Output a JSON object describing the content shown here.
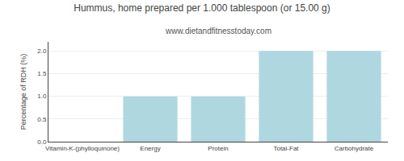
{
  "chart_data": {
    "type": "bar",
    "title": "Hummus, home prepared per 1.000 tablespoon (or 15.00 g)",
    "subtitle": "www.dietandfitnesstoday.com",
    "categories": [
      "Vitamin-K-(phylloquinone)",
      "Energy",
      "Protein",
      "Total-Fat",
      "Carbohydrate"
    ],
    "values": [
      0.0,
      1.0,
      1.0,
      2.0,
      2.0
    ],
    "color": "#afd7e0",
    "ylabel": "Percentage of RDH (%)",
    "ylim": [
      0,
      2.2
    ],
    "yticks": [
      {
        "value": 0,
        "label": "0.0"
      },
      0.5,
      {
        "value": 1,
        "label": "1.0"
      },
      1.5,
      {
        "value": 2,
        "label": "2.0"
      }
    ],
    "grid": true
  }
}
